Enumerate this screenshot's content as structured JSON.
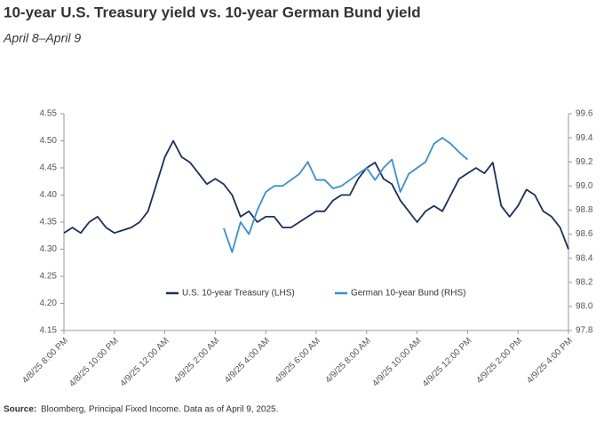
{
  "chart_data": {
    "type": "line",
    "title": "10-year U.S. Treasury yield vs. 10-year German Bund yield",
    "subtitle": "April 8–April 9",
    "source_label": "Source:",
    "source": "Bloomberg, Principal Fixed Income. Data as of April 9, 2025.",
    "categories": [
      "4/8/25 8:00 PM",
      null,
      null,
      null,
      null,
      null,
      "4/8/25 10:00 PM",
      null,
      null,
      null,
      null,
      null,
      "4/9/25 12:00 AM",
      null,
      null,
      null,
      null,
      null,
      "4/9/25 2:00 AM",
      null,
      null,
      null,
      null,
      null,
      "4/9/25 4:00 AM",
      null,
      null,
      null,
      null,
      null,
      "4/9/25 6:00 AM",
      null,
      null,
      null,
      null,
      null,
      "4/9/25 8:00 AM",
      null,
      null,
      null,
      null,
      null,
      "4/9/25 10:00 AM",
      null,
      null,
      null,
      null,
      null,
      "4/9/25 12:00 PM",
      null,
      null,
      null,
      null,
      null,
      "4/9/25 2:00 PM",
      null,
      null,
      null,
      null,
      null,
      "4/9/25 4:00 PM"
    ],
    "series": [
      {
        "name": "U.S. 10-year Treasury (LHS)",
        "color": "#1b2f5b",
        "axis": "y",
        "values": [
          4.33,
          4.34,
          4.33,
          4.35,
          4.36,
          4.34,
          4.33,
          4.335,
          4.34,
          4.35,
          4.37,
          4.42,
          4.47,
          4.5,
          4.47,
          4.46,
          4.44,
          4.42,
          4.43,
          4.42,
          4.4,
          4.36,
          4.37,
          4.35,
          4.36,
          4.36,
          4.34,
          4.34,
          4.35,
          4.36,
          4.37,
          4.37,
          4.39,
          4.4,
          4.4,
          4.43,
          4.45,
          4.46,
          4.43,
          4.42,
          4.39,
          4.37,
          4.35,
          4.37,
          4.38,
          4.37,
          4.4,
          4.43,
          4.44,
          4.45,
          4.44,
          4.46,
          4.38,
          4.36,
          4.38,
          4.41,
          4.4,
          4.37,
          4.36,
          4.34,
          4.3
        ]
      },
      {
        "name": "German 10-year Bund (RHS)",
        "color": "#3a8fd4",
        "axis": "y2",
        "values": [
          null,
          null,
          null,
          null,
          null,
          null,
          null,
          null,
          null,
          null,
          null,
          null,
          null,
          null,
          null,
          null,
          null,
          null,
          null,
          98.65,
          98.45,
          98.7,
          98.6,
          98.8,
          98.95,
          99.0,
          99.0,
          99.05,
          99.1,
          99.2,
          99.05,
          99.05,
          98.98,
          99.0,
          99.05,
          99.1,
          99.15,
          99.05,
          99.15,
          99.22,
          98.95,
          99.1,
          99.15,
          99.2,
          99.35,
          99.4,
          99.35,
          99.28,
          99.22,
          null,
          null,
          null,
          null,
          null,
          null,
          null,
          null,
          null,
          null,
          null,
          null
        ]
      }
    ],
    "ylim": [
      4.15,
      4.55
    ],
    "yticks": [
      4.15,
      {
        "value": 4.2,
        "label": "4.20"
      },
      4.25,
      {
        "value": 4.3,
        "label": "4.30"
      },
      4.35,
      {
        "value": 4.4,
        "label": "4.40"
      },
      4.45,
      {
        "value": 4.5,
        "label": "4.50"
      },
      4.55
    ],
    "y2lim": [
      97.8,
      99.6
    ],
    "y2ticks": [
      97.8,
      {
        "value": 98,
        "label": "98.0"
      },
      98.2,
      98.4,
      98.6,
      98.8,
      {
        "value": 99,
        "label": "99.0"
      },
      99.2,
      99.4,
      99.6
    ],
    "grid": false,
    "legend": "bottom"
  }
}
